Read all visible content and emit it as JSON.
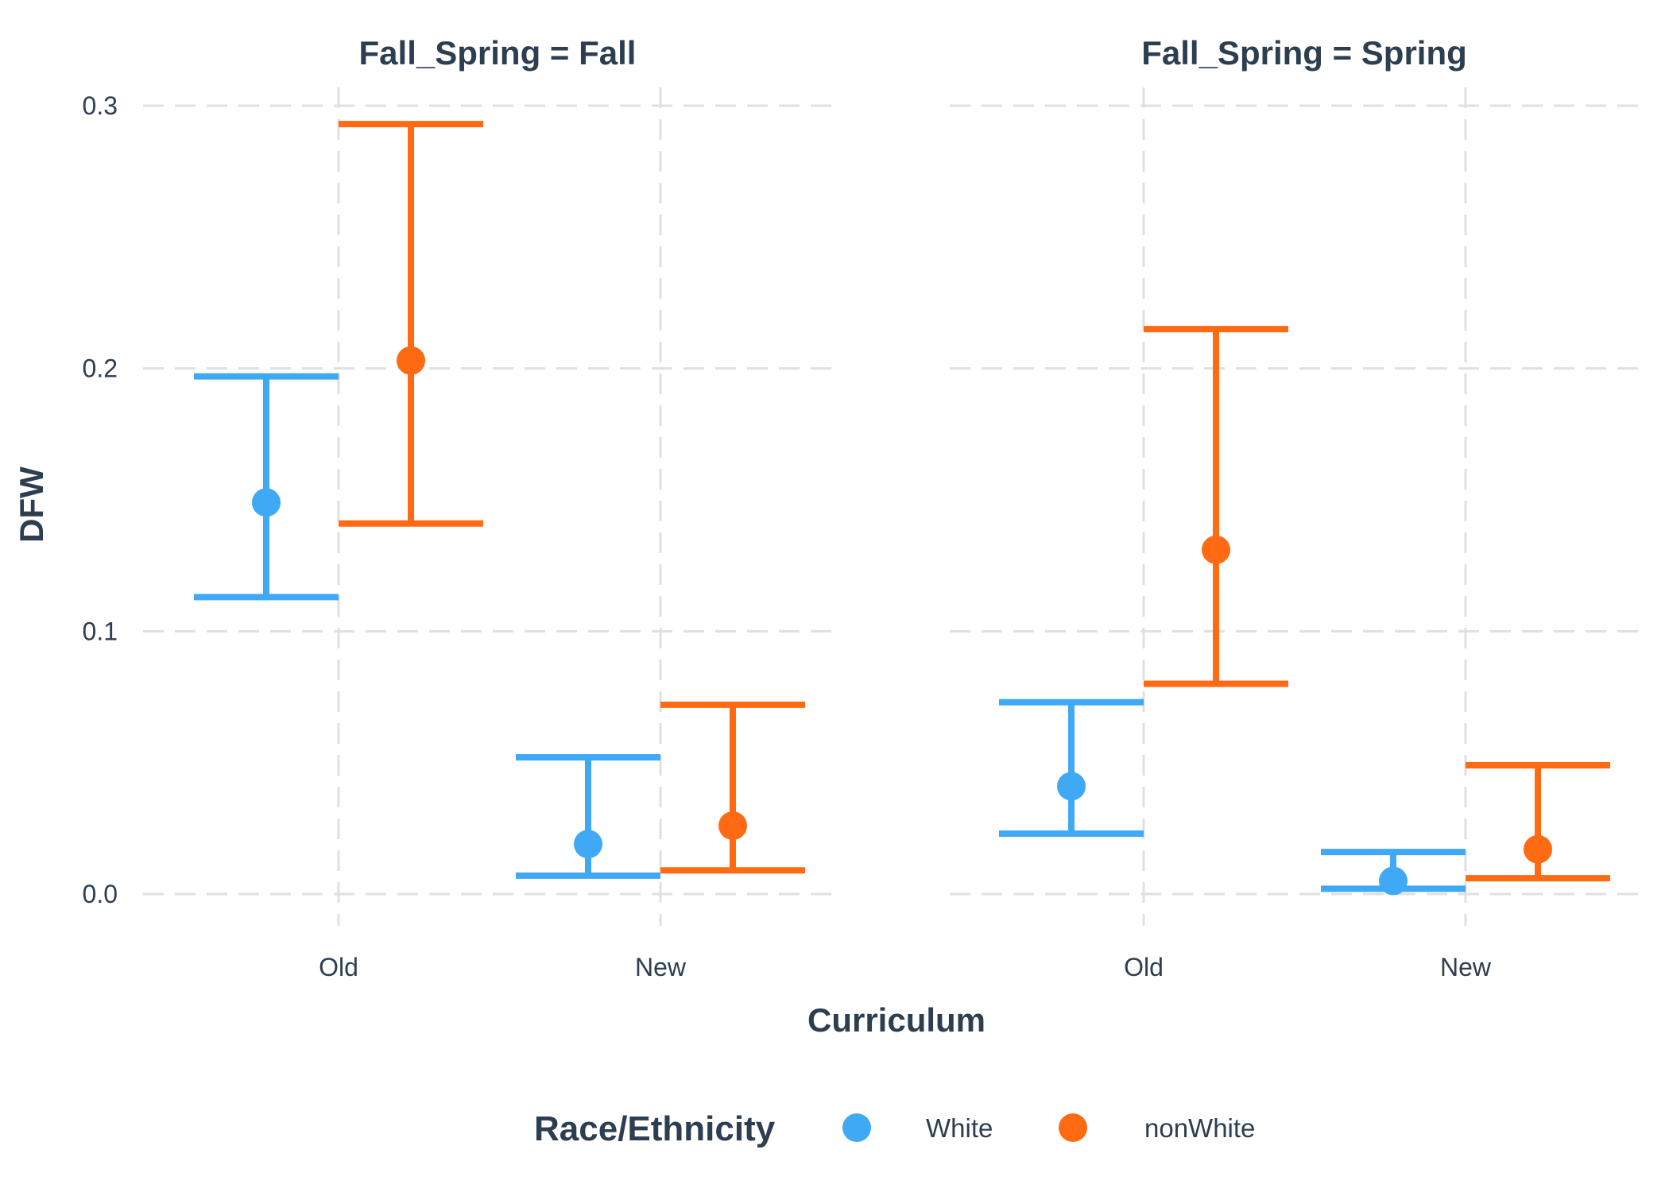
{
  "chart_data": {
    "type": "errorbar",
    "xlabel": "Curriculum",
    "ylabel": "DFW",
    "ylim": [
      -0.014,
      0.305
    ],
    "yticks": [
      0.0,
      0.1,
      0.2,
      0.3
    ],
    "ytick_labels": [
      "0.0",
      "0.1",
      "0.2",
      "0.3"
    ],
    "categories": [
      "Old",
      "New"
    ],
    "grid": true,
    "legend": {
      "title": "Race/Ethnicity",
      "position": "bottom",
      "entries": [
        {
          "name": "White",
          "color": "#3fa9f5"
        },
        {
          "name": "nonWhite",
          "color": "#ff6a13"
        }
      ]
    },
    "text_color": "#2c3e50",
    "facets": [
      {
        "title": "Fall_Spring = Fall",
        "series": [
          {
            "name": "White",
            "points": [
              {
                "x": "Old",
                "y": 0.149,
                "lower": 0.113,
                "upper": 0.197
              },
              {
                "x": "New",
                "y": 0.019,
                "lower": 0.007,
                "upper": 0.052
              }
            ]
          },
          {
            "name": "nonWhite",
            "points": [
              {
                "x": "Old",
                "y": 0.203,
                "lower": 0.141,
                "upper": 0.293
              },
              {
                "x": "New",
                "y": 0.026,
                "lower": 0.009,
                "upper": 0.072
              }
            ]
          }
        ]
      },
      {
        "title": "Fall_Spring = Spring",
        "series": [
          {
            "name": "White",
            "points": [
              {
                "x": "Old",
                "y": 0.041,
                "lower": 0.023,
                "upper": 0.073
              },
              {
                "x": "New",
                "y": 0.005,
                "lower": 0.002,
                "upper": 0.016
              }
            ]
          },
          {
            "name": "nonWhite",
            "points": [
              {
                "x": "Old",
                "y": 0.131,
                "lower": 0.08,
                "upper": 0.215
              },
              {
                "x": "New",
                "y": 0.017,
                "lower": 0.006,
                "upper": 0.049
              }
            ]
          }
        ]
      }
    ]
  }
}
